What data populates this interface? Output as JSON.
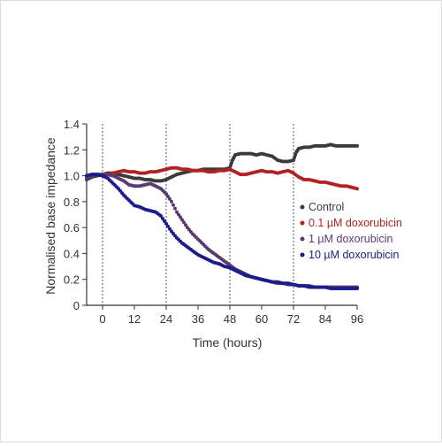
{
  "chart_data": {
    "type": "scatter",
    "xlabel": "Time (hours)",
    "ylabel": "Normalised base impedance",
    "xlim": [
      -6,
      96
    ],
    "ylim": [
      0,
      1.4
    ],
    "xticks": [
      0,
      12,
      24,
      36,
      48,
      60,
      72,
      84,
      96
    ],
    "yticks": [
      0,
      0.2,
      0.4,
      0.6,
      0.8,
      1.0,
      1.2,
      1.4
    ],
    "xtick_labels": [
      "0",
      "12",
      "24",
      "36",
      "48",
      "60",
      "72",
      "84",
      "96"
    ],
    "ytick_labels": [
      "0",
      "0.2",
      "0.4",
      "0.6",
      "0.8",
      "1.0",
      "1.2",
      "1.4"
    ],
    "vlines": [
      0,
      24,
      48,
      72
    ],
    "grid": false,
    "legend_position": "right",
    "series": [
      {
        "name": "Control",
        "color": "#3a3a3a",
        "x": [
          -6,
          -4,
          -2,
          0,
          2,
          4,
          6,
          8,
          10,
          12,
          14,
          16,
          18,
          20,
          22,
          24,
          26,
          28,
          30,
          32,
          34,
          36,
          38,
          40,
          42,
          44,
          46,
          48,
          49,
          50,
          52,
          54,
          56,
          58,
          60,
          62,
          64,
          66,
          68,
          70,
          72,
          73,
          74,
          76,
          78,
          80,
          82,
          84,
          86,
          88,
          90,
          92,
          94,
          96
        ],
        "y": [
          0.97,
          0.99,
          1.0,
          1.01,
          1.02,
          1.02,
          1.01,
          1.0,
          0.99,
          0.98,
          0.98,
          0.97,
          0.97,
          0.96,
          0.96,
          0.97,
          0.99,
          1.01,
          1.02,
          1.03,
          1.04,
          1.04,
          1.05,
          1.05,
          1.05,
          1.05,
          1.05,
          1.06,
          1.12,
          1.16,
          1.17,
          1.17,
          1.17,
          1.16,
          1.17,
          1.16,
          1.15,
          1.12,
          1.11,
          1.11,
          1.12,
          1.18,
          1.21,
          1.22,
          1.22,
          1.23,
          1.23,
          1.23,
          1.24,
          1.23,
          1.23,
          1.23,
          1.23,
          1.23
        ]
      },
      {
        "name": "0.1 µM doxorubicin",
        "color": "#b22222",
        "x": [
          -6,
          -4,
          -2,
          0,
          2,
          4,
          6,
          8,
          10,
          12,
          14,
          16,
          18,
          20,
          22,
          24,
          26,
          28,
          30,
          32,
          34,
          36,
          38,
          40,
          42,
          44,
          46,
          48,
          50,
          52,
          54,
          56,
          58,
          60,
          62,
          64,
          66,
          68,
          70,
          72,
          74,
          76,
          78,
          80,
          82,
          84,
          86,
          88,
          90,
          92,
          94,
          96
        ],
        "y": [
          1.0,
          1.01,
          1.01,
          1.0,
          1.01,
          1.02,
          1.03,
          1.04,
          1.03,
          1.03,
          1.02,
          1.02,
          1.03,
          1.03,
          1.04,
          1.05,
          1.06,
          1.06,
          1.05,
          1.05,
          1.04,
          1.04,
          1.04,
          1.03,
          1.03,
          1.04,
          1.04,
          1.05,
          1.03,
          1.01,
          1.01,
          1.02,
          1.03,
          1.04,
          1.03,
          1.03,
          1.02,
          1.03,
          1.04,
          1.02,
          0.99,
          0.97,
          0.97,
          0.96,
          0.95,
          0.95,
          0.94,
          0.93,
          0.92,
          0.92,
          0.91,
          0.9
        ]
      },
      {
        "name": "1 µM doxorubicin",
        "color": "#5a3a73",
        "x": [
          -6,
          -4,
          -2,
          0,
          2,
          4,
          6,
          8,
          10,
          12,
          14,
          16,
          18,
          20,
          22,
          24,
          26,
          28,
          30,
          32,
          34,
          36,
          38,
          40,
          42,
          44,
          46,
          48,
          50,
          52,
          54,
          56,
          58,
          60,
          62,
          64,
          66,
          68,
          70,
          72,
          74,
          76,
          78,
          80,
          82,
          84,
          86,
          88,
          90,
          92,
          94,
          96
        ],
        "y": [
          0.98,
          1.0,
          1.01,
          1.01,
          1.01,
          1.0,
          0.98,
          0.96,
          0.93,
          0.92,
          0.92,
          0.93,
          0.94,
          0.92,
          0.9,
          0.86,
          0.8,
          0.72,
          0.66,
          0.6,
          0.55,
          0.51,
          0.47,
          0.43,
          0.4,
          0.37,
          0.34,
          0.31,
          0.28,
          0.26,
          0.24,
          0.22,
          0.21,
          0.2,
          0.19,
          0.18,
          0.17,
          0.17,
          0.16,
          0.16,
          0.15,
          0.15,
          0.15,
          0.14,
          0.14,
          0.14,
          0.14,
          0.14,
          0.14,
          0.14,
          0.14,
          0.14
        ]
      },
      {
        "name": "10 µM doxorubicin",
        "color": "#1c1c8f",
        "x": [
          -6,
          -4,
          -2,
          0,
          2,
          4,
          6,
          8,
          10,
          12,
          14,
          16,
          18,
          20,
          22,
          24,
          26,
          28,
          30,
          32,
          34,
          36,
          38,
          40,
          42,
          44,
          46,
          48,
          50,
          52,
          54,
          56,
          58,
          60,
          62,
          64,
          66,
          68,
          70,
          72,
          74,
          76,
          78,
          80,
          82,
          84,
          86,
          88,
          90,
          92,
          94,
          96
        ],
        "y": [
          1.0,
          1.01,
          1.01,
          1.0,
          0.98,
          0.94,
          0.9,
          0.85,
          0.81,
          0.77,
          0.76,
          0.74,
          0.73,
          0.72,
          0.69,
          0.63,
          0.57,
          0.52,
          0.48,
          0.45,
          0.42,
          0.39,
          0.37,
          0.35,
          0.33,
          0.32,
          0.3,
          0.29,
          0.27,
          0.25,
          0.23,
          0.22,
          0.21,
          0.2,
          0.19,
          0.18,
          0.18,
          0.17,
          0.17,
          0.16,
          0.15,
          0.15,
          0.14,
          0.14,
          0.14,
          0.14,
          0.13,
          0.13,
          0.13,
          0.13,
          0.13,
          0.13
        ]
      }
    ]
  }
}
